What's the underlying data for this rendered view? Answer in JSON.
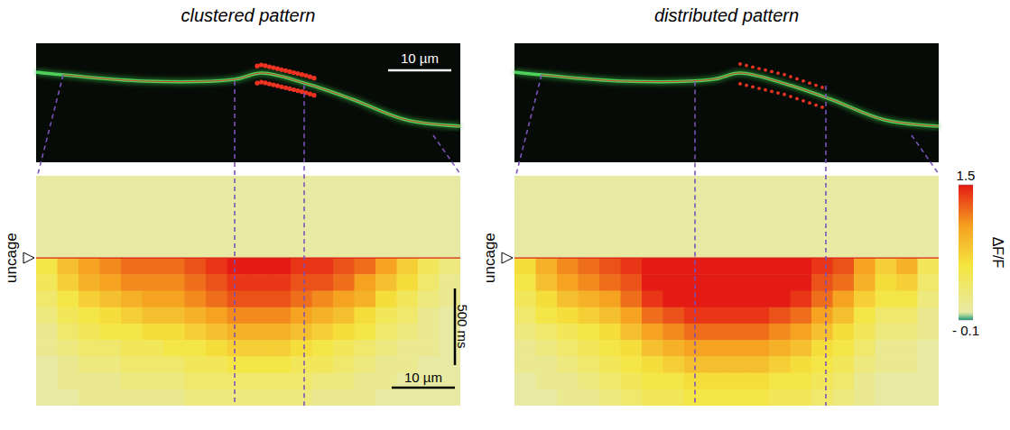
{
  "chart_data": [
    {
      "type": "heatmap",
      "title": "clustered pattern",
      "annotation": "uncage",
      "image_scale_bar": "10 µm",
      "time_scale_bar": "500 ms",
      "space_scale_bar": "10 µm",
      "cells": [
        [
          0,
          0,
          0,
          0,
          0,
          0,
          0,
          0,
          0,
          0,
          0,
          0,
          0,
          0,
          0,
          0,
          0,
          0,
          0,
          0
        ],
        [
          0,
          0,
          0,
          0,
          0,
          0,
          0,
          0,
          0,
          0,
          0,
          0,
          0,
          0,
          0,
          0,
          0,
          0,
          0,
          0
        ],
        [
          0,
          0,
          0,
          0,
          0,
          0,
          0,
          0,
          0,
          0,
          0,
          0,
          0,
          0,
          0,
          0,
          0,
          0,
          0,
          0
        ],
        [
          0,
          0,
          0,
          0,
          0,
          0,
          0,
          0,
          0,
          0,
          0,
          0,
          0,
          0,
          0,
          0,
          0,
          0,
          0,
          0
        ],
        [
          0,
          0,
          0,
          0,
          0,
          0,
          0,
          0,
          0,
          0,
          0,
          0,
          0,
          0,
          0,
          0,
          0,
          0,
          0,
          0
        ],
        [
          0.5,
          0.8,
          1.0,
          1.1,
          1.2,
          1.2,
          1.2,
          1.3,
          1.4,
          1.5,
          1.5,
          1.5,
          1.4,
          1.4,
          1.3,
          1.2,
          1.0,
          0.7,
          0.4,
          0.2
        ],
        [
          0.4,
          0.7,
          0.9,
          1.0,
          1.1,
          1.1,
          1.1,
          1.2,
          1.3,
          1.4,
          1.4,
          1.4,
          1.3,
          1.3,
          1.2,
          1.0,
          0.8,
          0.6,
          0.3,
          0.1
        ],
        [
          0.3,
          0.5,
          0.7,
          0.8,
          0.9,
          1.0,
          1.0,
          1.1,
          1.2,
          1.3,
          1.3,
          1.3,
          1.2,
          1.1,
          1.0,
          0.9,
          0.6,
          0.4,
          0.2,
          0.1
        ],
        [
          0.2,
          0.4,
          0.5,
          0.6,
          0.7,
          0.8,
          0.8,
          0.9,
          1.0,
          1.1,
          1.1,
          1.1,
          1.0,
          0.9,
          0.8,
          0.6,
          0.4,
          0.3,
          0.1,
          0
        ],
        [
          0.1,
          0.3,
          0.4,
          0.5,
          0.5,
          0.6,
          0.6,
          0.7,
          0.8,
          0.9,
          0.9,
          0.9,
          0.8,
          0.7,
          0.6,
          0.5,
          0.3,
          0.2,
          0.1,
          0
        ],
        [
          0.1,
          0.2,
          0.3,
          0.3,
          0.4,
          0.4,
          0.5,
          0.5,
          0.6,
          0.7,
          0.7,
          0.7,
          0.6,
          0.5,
          0.4,
          0.3,
          0.2,
          0.1,
          0.1,
          0
        ],
        [
          0,
          0.1,
          0.2,
          0.2,
          0.3,
          0.3,
          0.3,
          0.4,
          0.4,
          0.5,
          0.5,
          0.5,
          0.4,
          0.4,
          0.3,
          0.2,
          0.1,
          0.1,
          0,
          0
        ],
        [
          0,
          0.1,
          0.1,
          0.1,
          0.2,
          0.2,
          0.2,
          0.3,
          0.3,
          0.3,
          0.3,
          0.3,
          0.3,
          0.2,
          0.2,
          0.1,
          0.1,
          0,
          0,
          0
        ],
        [
          0,
          0,
          0.1,
          0.1,
          0.1,
          0.1,
          0.1,
          0.2,
          0.2,
          0.2,
          0.2,
          0.2,
          0.2,
          0.1,
          0.1,
          0.1,
          0,
          0,
          0,
          0
        ]
      ]
    },
    {
      "type": "heatmap",
      "title": "distributed pattern",
      "annotation": "uncage",
      "colorbar": {
        "label": "ΔF/F",
        "range": [
          -0.1,
          1.5
        ],
        "ticks": [
          1.5,
          {
            "value": -0.1,
            "label": "- 0.1"
          }
        ]
      },
      "cells": [
        [
          0,
          0,
          0,
          0,
          0,
          0,
          0,
          0,
          0,
          0,
          0,
          0,
          0,
          0,
          0,
          0,
          0,
          0,
          0,
          0
        ],
        [
          0,
          0,
          0,
          0,
          0,
          0,
          0,
          0,
          0,
          0,
          0,
          0,
          0,
          0,
          0,
          0,
          0,
          0,
          0,
          0
        ],
        [
          0,
          0,
          0,
          0,
          0,
          0,
          0,
          0,
          0,
          0,
          0,
          0,
          0,
          0,
          0,
          0,
          0,
          0,
          0,
          0
        ],
        [
          0,
          0,
          0,
          0,
          0,
          0,
          0,
          0,
          0,
          0,
          0,
          0,
          0,
          0,
          0,
          0,
          0,
          0,
          0,
          0
        ],
        [
          0,
          0,
          0,
          0,
          0,
          0,
          0,
          0,
          0,
          0,
          0,
          0,
          0,
          0,
          0,
          0,
          0,
          0,
          0,
          0
        ],
        [
          0.6,
          0.9,
          1.1,
          1.2,
          1.3,
          1.4,
          1.5,
          1.5,
          1.5,
          1.5,
          1.5,
          1.5,
          1.5,
          1.5,
          1.4,
          1.3,
          1.0,
          0.7,
          0.9,
          0.4
        ],
        [
          0.5,
          0.8,
          1.0,
          1.1,
          1.2,
          1.3,
          1.5,
          1.5,
          1.5,
          1.5,
          1.5,
          1.5,
          1.5,
          1.5,
          1.3,
          1.2,
          0.9,
          0.6,
          0.7,
          0.3
        ],
        [
          0.4,
          0.6,
          0.8,
          0.9,
          1.0,
          1.2,
          1.4,
          1.5,
          1.5,
          1.5,
          1.5,
          1.5,
          1.5,
          1.4,
          1.2,
          1.0,
          0.7,
          0.5,
          0.5,
          0.2
        ],
        [
          0.3,
          0.5,
          0.6,
          0.7,
          0.8,
          1.0,
          1.2,
          1.3,
          1.4,
          1.4,
          1.4,
          1.4,
          1.3,
          1.2,
          1.0,
          0.8,
          0.5,
          0.3,
          0.3,
          0.1
        ],
        [
          0.2,
          0.3,
          0.4,
          0.5,
          0.6,
          0.8,
          1.0,
          1.1,
          1.2,
          1.2,
          1.2,
          1.2,
          1.1,
          1.0,
          0.8,
          0.6,
          0.4,
          0.2,
          0.2,
          0.1
        ],
        [
          0.1,
          0.2,
          0.3,
          0.4,
          0.5,
          0.6,
          0.8,
          0.9,
          1.0,
          1.0,
          1.0,
          1.0,
          0.9,
          0.8,
          0.6,
          0.5,
          0.3,
          0.1,
          0.1,
          0
        ],
        [
          0.1,
          0.1,
          0.2,
          0.3,
          0.4,
          0.5,
          0.6,
          0.7,
          0.8,
          0.8,
          0.8,
          0.8,
          0.7,
          0.6,
          0.5,
          0.4,
          0.2,
          0.1,
          0.1,
          0
        ],
        [
          0,
          0.1,
          0.1,
          0.2,
          0.3,
          0.4,
          0.5,
          0.5,
          0.6,
          0.6,
          0.6,
          0.6,
          0.5,
          0.5,
          0.4,
          0.3,
          0.1,
          0,
          0,
          0
        ],
        [
          0,
          0,
          0.1,
          0.1,
          0.2,
          0.3,
          0.4,
          0.4,
          0.5,
          0.5,
          0.5,
          0.5,
          0.4,
          0.4,
          0.3,
          0.2,
          0.1,
          0,
          0,
          0
        ]
      ]
    }
  ]
}
